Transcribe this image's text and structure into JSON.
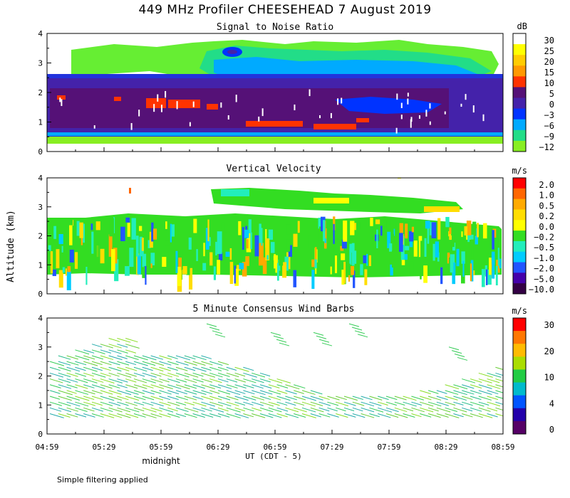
{
  "title": "449 MHz Profiler CHEESEHEAD  7 August 2019",
  "y_axis_label": "Altitude (km)",
  "x_axis_label": "UT  (CDT - 5)",
  "midnight_label": "midnight",
  "footer": "Simple filtering applied",
  "time_ticks": [
    "04:59",
    "05:29",
    "05:59",
    "06:29",
    "06:59",
    "07:29",
    "07:59",
    "08:29",
    "08:59"
  ],
  "altitude_ticks": [
    "0",
    "1",
    "2",
    "3",
    "4"
  ],
  "chart_data": [
    {
      "type": "heatmap",
      "title": "Signal to Noise Ratio",
      "unit": "dB",
      "xlabel": "UT  (CDT - 5)",
      "ylabel": "Altitude (km)",
      "xlim": [
        "04:59",
        "08:59"
      ],
      "ylim": [
        0,
        4
      ],
      "colorbar_labels": [
        "30",
        "25",
        "20",
        "15",
        "10",
        "5",
        "0",
        "−3",
        "−6",
        "−9",
        "−12"
      ],
      "colorbar_colors": [
        "#ffffff",
        "#ffff00",
        "#ffcc00",
        "#ff9900",
        "#ff3300",
        "#551177",
        "#4422aa",
        "#0033ff",
        "#00aaff",
        "#22dd88",
        "#88ee22"
      ]
    },
    {
      "type": "heatmap",
      "title": "Vertical Velocity",
      "unit": "m/s",
      "xlabel": "UT  (CDT - 5)",
      "ylabel": "Altitude (km)",
      "xlim": [
        "04:59",
        "08:59"
      ],
      "ylim": [
        0,
        4
      ],
      "colorbar_labels": [
        "2.0",
        "1.0",
        "0.5",
        "0.2",
        "0.0",
        "−0.2",
        "−0.5",
        "−1.0",
        "−2.0",
        "−5.0",
        "−10.0"
      ],
      "colorbar_colors": [
        "#ff0000",
        "#ff6600",
        "#ffaa00",
        "#ffdd00",
        "#ffff00",
        "#33dd22",
        "#22eebb",
        "#00ccff",
        "#2255ff",
        "#4400aa",
        "#330044"
      ]
    },
    {
      "type": "scatter",
      "title": "5 Minute Consensus Wind Barbs",
      "unit": "m/s",
      "xlabel": "UT  (CDT - 5)",
      "ylabel": "Altitude (km)",
      "xlim": [
        "04:59",
        "08:59"
      ],
      "ylim": [
        0,
        4
      ],
      "colorbar_labels": [
        "30",
        "20",
        "10",
        "4",
        "0"
      ],
      "colorbar_colors": [
        "#ff0000",
        "#ff7700",
        "#ffbb00",
        "#aadd00",
        "#22cc44",
        "#00bbcc",
        "#0055ff",
        "#2200aa",
        "#550066"
      ]
    }
  ]
}
